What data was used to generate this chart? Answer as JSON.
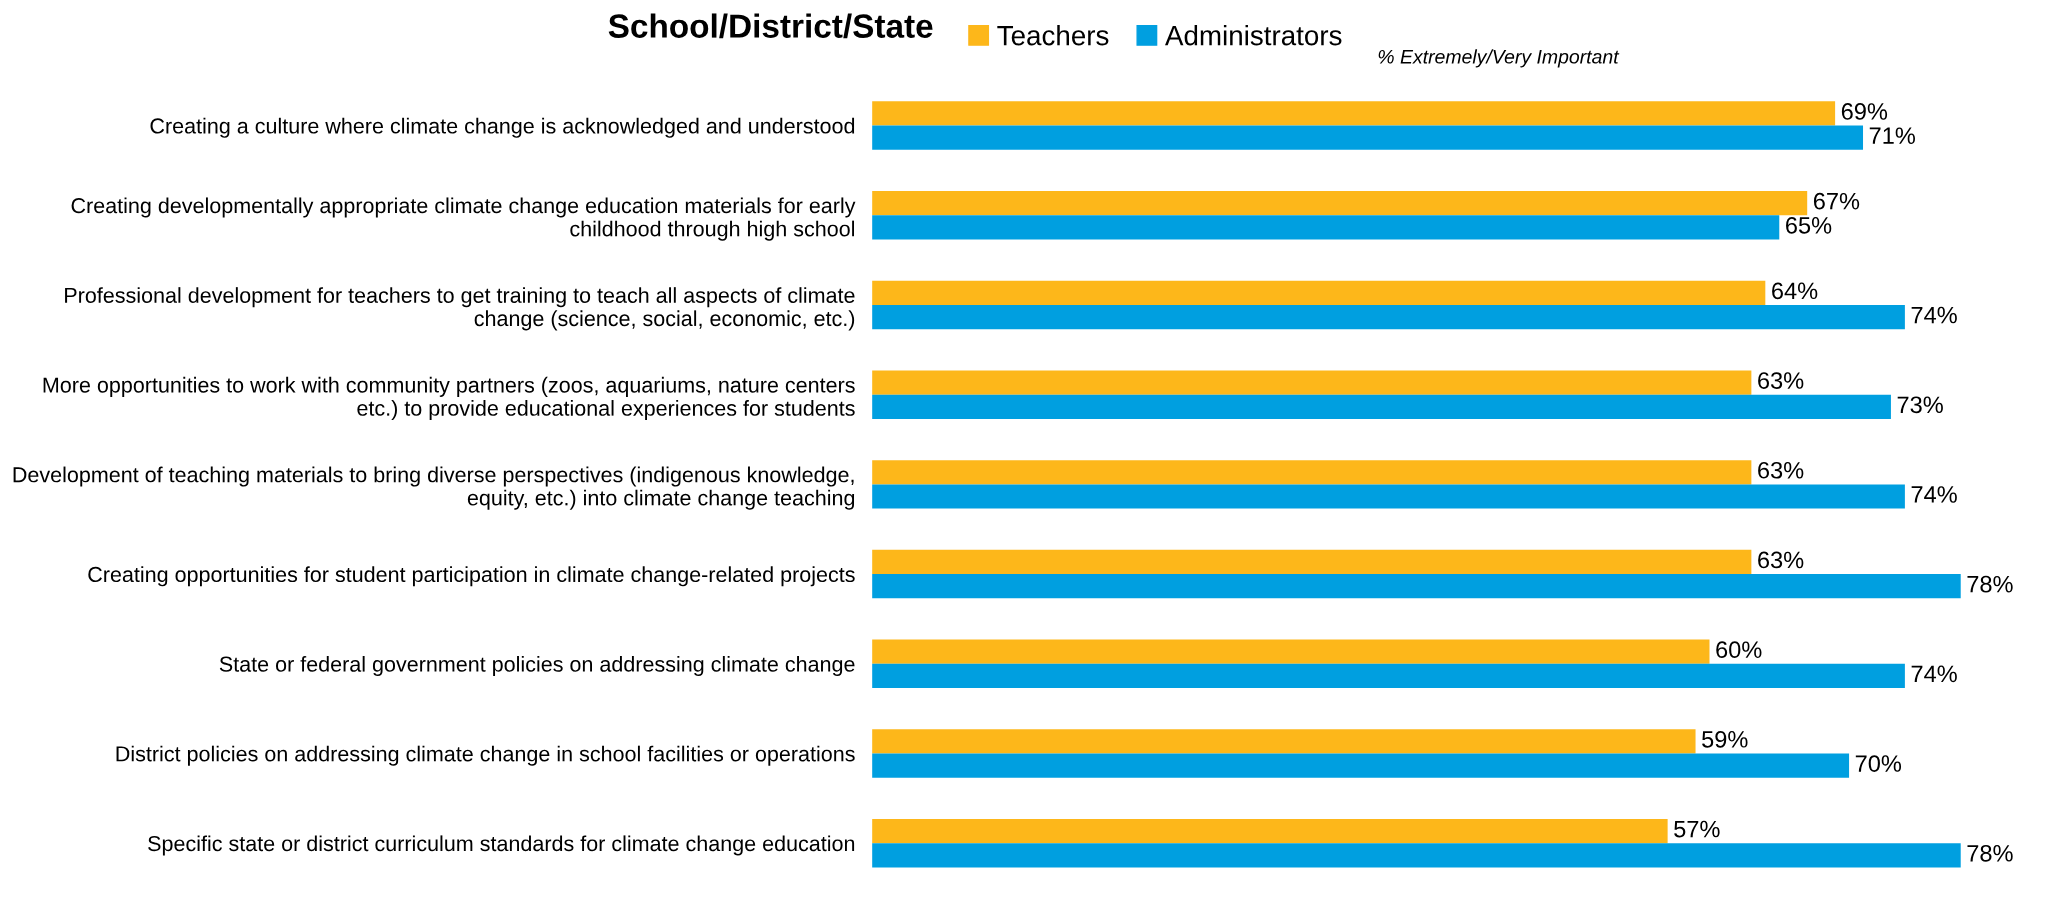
{
  "chart_data": {
    "type": "bar",
    "orientation": "horizontal",
    "title": "School/District/State",
    "subtitle": "% Extremely/Very Important",
    "categories": [
      "Creating a culture where climate change is acknowledged and understood",
      "Creating developmentally appropriate climate change education materials for early childhood through high school",
      "Professional development for teachers to get training to teach all aspects of climate change (science, social, economic, etc.)",
      "More opportunities to work with community partners (zoos, aquariums, nature centers etc.) to provide educational experiences for students",
      "Development of teaching materials to bring diverse perspectives (indigenous knowledge, equity, etc.) into climate change teaching",
      "Creating opportunities for student participation in climate change-related projects",
      "State or federal government policies on addressing climate change",
      "District policies on addressing climate change in school facilities or operations",
      "Specific state or district curriculum standards for climate change education"
    ],
    "series": [
      {
        "name": "Teachers",
        "color": "#fdb71a",
        "values": [
          69,
          67,
          64,
          63,
          63,
          63,
          60,
          59,
          57
        ],
        "value_labels": [
          "69%",
          "67%",
          "64%",
          "63%",
          "63%",
          "63%",
          "60%",
          "59%",
          "57%"
        ]
      },
      {
        "name": "Administrators",
        "color": "#009fe0",
        "values": [
          71,
          65,
          74,
          73,
          74,
          78,
          74,
          70,
          78
        ],
        "value_labels": [
          "71%",
          "65%",
          "74%",
          "73%",
          "74%",
          "78%",
          "74%",
          "70%",
          "78%"
        ]
      }
    ],
    "legend": "top",
    "grid": false
  }
}
